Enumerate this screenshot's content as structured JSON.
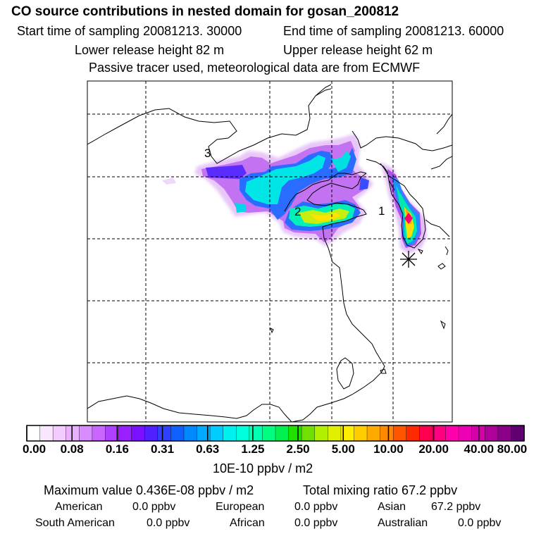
{
  "header": {
    "title": "CO  source contributions in nested domain for gosan_200812",
    "start": "Start time of sampling 20081213. 30000",
    "end": "End time of sampling 20081213. 60000",
    "lower": "Lower release height   82 m",
    "upper": "Upper release height   62 m",
    "tracer": "Passive tracer used, meteorological data are from ECMWF"
  },
  "map": {
    "labels": [
      "1",
      "2",
      "3"
    ]
  },
  "colorbar": {
    "ticks": [
      "0.00",
      "0.08",
      "0.16",
      "0.31",
      "0.63",
      "1.25",
      "2.50",
      "5.00",
      "10.00",
      "20.00",
      "40.00",
      "80.00"
    ],
    "unit": "10E-10 ppbv / m2",
    "colors": [
      "#ffffff",
      "#fae6ff",
      "#f2ccff",
      "#e8b0ff",
      "#d98cff",
      "#c866ff",
      "#b040ff",
      "#9a20ff",
      "#7a10ff",
      "#5020ff",
      "#3040ff",
      "#1060ff",
      "#0088ff",
      "#00aaff",
      "#00ccff",
      "#00f0f0",
      "#00ffdd",
      "#00ffb0",
      "#00ff80",
      "#00f050",
      "#20e000",
      "#70e000",
      "#b0f000",
      "#e0f000",
      "#ffee00",
      "#ffcc00",
      "#ffaa00",
      "#ff8800",
      "#ff5500",
      "#ff2a00",
      "#ff0050",
      "#ff0080",
      "#ff00aa",
      "#ee00b4",
      "#d400aa",
      "#b0009a",
      "#8a0088",
      "#600070"
    ]
  },
  "summary": {
    "max": "Maximum value  0.436E-08 ppbv / m2",
    "total": "Total mixing ratio       67.2 ppbv",
    "american": "American",
    "american_v": "0.0 ppbv",
    "european": "European",
    "european_v": "0.0 ppbv",
    "asian": "Asian",
    "asian_v": "67.2 ppbv",
    "south_american": "South American",
    "south_american_v": "0.0 ppbv",
    "african": "African",
    "african_v": "0.0 ppbv",
    "australian": "Australian",
    "australian_v": "0.0 ppbv"
  }
}
